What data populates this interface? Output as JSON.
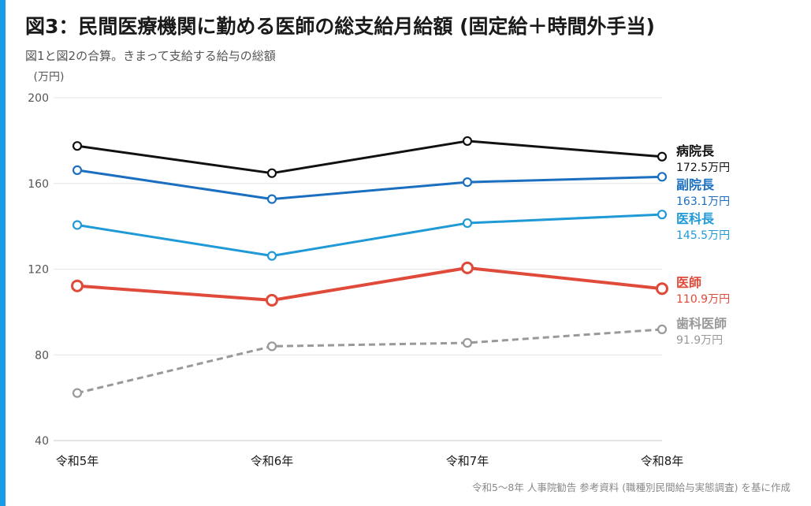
{
  "title": "図3：民間医療機関に勤める医師の総支給月給額 (固定給＋時間外手当)",
  "subtitle": "図1と図2の合算。きまって支給する給与の総額",
  "source": "令和5～8年 人事院勧告 参考資料 (職種別民間給与実態調査) を基に作成",
  "colors": {
    "accent": "#1a9be6"
  },
  "chart_data": {
    "type": "line",
    "categories": [
      "令和5年",
      "令和6年",
      "令和7年",
      "令和8年"
    ],
    "yunit": "(万円)",
    "ylim": [
      40,
      200
    ],
    "yticks": [
      40,
      80,
      120,
      160,
      200
    ],
    "grid": true,
    "series": [
      {
        "name": "病院長",
        "values": [
          177.5,
          164.8,
          179.8,
          172.5
        ],
        "color": "#111111",
        "dashed": false,
        "bold": false,
        "end_label": "172.5万円"
      },
      {
        "name": "副院長",
        "values": [
          166.2,
          152.7,
          160.6,
          163.1
        ],
        "color": "#1a6fc0",
        "dashed": false,
        "bold": false,
        "end_label": "163.1万円"
      },
      {
        "name": "医科長",
        "values": [
          140.6,
          126.2,
          141.5,
          145.5
        ],
        "color": "#1f9ad6",
        "dashed": false,
        "bold": false,
        "end_label": "145.5万円"
      },
      {
        "name": "医師",
        "values": [
          112.2,
          105.5,
          120.6,
          110.9
        ],
        "color": "#e04a3a",
        "dashed": false,
        "bold": true,
        "end_label": "110.9万円"
      },
      {
        "name": "歯科医師",
        "values": [
          62.2,
          84.0,
          85.6,
          91.9
        ],
        "color": "#999999",
        "dashed": true,
        "bold": false,
        "end_label": "91.9万円"
      }
    ]
  }
}
